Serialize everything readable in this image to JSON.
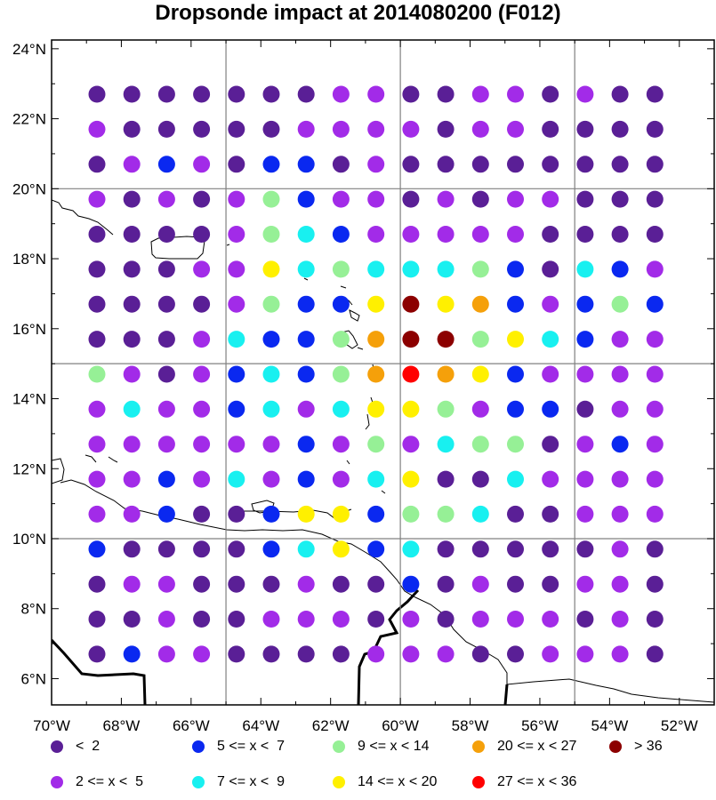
{
  "title": "Dropsonde impact at 2014080200 (F012)",
  "palette": {
    "dark_purple": "#5a1f96",
    "purple": "#a22be8",
    "blue": "#0a28f0",
    "cyan": "#18f0f0",
    "light_green": "#96f096",
    "yellow": "#fff000",
    "orange": "#f5a00a",
    "red": "#ff0000",
    "dark_red": "#8c0000"
  },
  "map": {
    "lon_range": [
      -70,
      -51
    ],
    "lat_range": [
      5.25,
      24.25
    ],
    "grid_lons": [
      -65,
      -60,
      -55
    ],
    "grid_lats": [
      10,
      15,
      20
    ],
    "x_ticks": [
      "70°W",
      "68°W",
      "66°W",
      "64°W",
      "62°W",
      "60°W",
      "58°W",
      "56°W",
      "54°W",
      "52°W"
    ],
    "y_ticks": [
      "24°N",
      "22°N",
      "20°N",
      "18°N",
      "16°N",
      "14°N",
      "12°N",
      "10°N",
      "8°N",
      "6°N"
    ]
  },
  "chart_data": {
    "type": "scatter",
    "title": "Dropsonde impact at 2014080200 (F012)",
    "lons": [
      -68.7,
      -67.7,
      -66.7,
      -65.7,
      -64.7,
      -63.7,
      -62.7,
      -61.7,
      -60.7,
      -59.7,
      -58.7,
      -57.7,
      -56.7,
      -55.7,
      -54.7,
      -53.7,
      -52.7
    ],
    "lats": [
      22.7,
      21.7,
      20.7,
      19.7,
      18.7,
      17.7,
      16.7,
      15.7,
      14.7,
      13.7,
      12.7,
      11.7,
      10.7,
      9.7,
      8.7,
      7.7,
      6.7
    ],
    "category_codes": {
      "D": "< 2",
      "P": "2 <= x < 5",
      "B": "5 <= x < 7",
      "C": "7 <= x < 9",
      "G": "9 <= x < 14",
      "Y": "14 <= x < 20",
      "O": "20 <= x < 27",
      "R": "27 <= x < 36",
      "M": "> 36"
    },
    "rows": [
      "DDDDDDDPPDDPPDPDD",
      "PDDDDDPPPPDPPDDDD",
      "DPBPDBBDPDDDDDDDD",
      "PDPDPGBPPDPDPPDDD",
      "DDDDPGCBPPPPPDDDD",
      "DDDPPYCGCCCGBDCBP",
      "DDDDPGBBYMYOBPBGB",
      "DDDPCBBGOMMGYCBPP",
      "GPDPBCBGOROYBPPPP",
      "PCPPBCPCYYGPBBDPP",
      "PPPPPPBPGPCGGDPBP",
      "PPBPCPBPCYDDCPPPP",
      "PPBDDBYYBGGCDDPPP",
      "BDDDDBCYBCDDDDDPD",
      "DPPDDDPDDBDPDDPPD",
      "DDPDDPPPDPDPPPDPD",
      "DBPPDDDDPPPDDPPPD"
    ]
  },
  "legend": [
    {
      "label": "<  2",
      "code": "D"
    },
    {
      "label": "5 <= x <  7",
      "code": "B"
    },
    {
      "label": "9 <= x < 14",
      "code": "G"
    },
    {
      "label": "20 <= x < 27",
      "code": "O"
    },
    {
      "label": "> 36",
      "code": "M"
    },
    {
      "label": "2 <= x <  5",
      "code": "P"
    },
    {
      "label": "7 <= x <  9",
      "code": "C"
    },
    {
      "label": "14 <= x < 20",
      "code": "Y"
    },
    {
      "label": "27 <= x < 36",
      "code": "R"
    }
  ]
}
